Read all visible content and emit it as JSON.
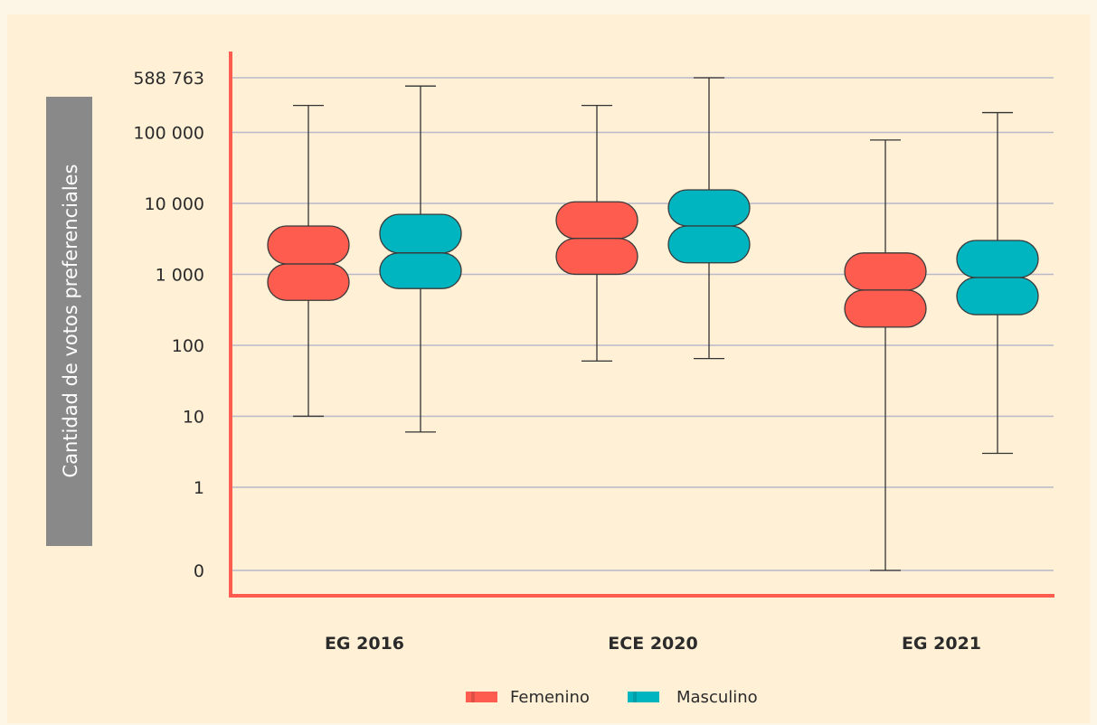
{
  "chart_data": {
    "type": "box",
    "ylabel": "Cantidad de votos preferenciales",
    "y_scale": "log",
    "y_ticks": [
      "0",
      "1",
      "10",
      "100",
      "1 000",
      "10 000",
      "100 000",
      "588 763"
    ],
    "y_tick_values": [
      0,
      1,
      10,
      100,
      1000,
      10000,
      100000,
      588763
    ],
    "categories": [
      "EG 2016",
      "ECE 2020",
      "EG 2021"
    ],
    "series": [
      {
        "name": "Femenino",
        "color": "#fd5c4f",
        "boxes": [
          {
            "min": 10,
            "q1": 430,
            "median": 1400,
            "q3": 4800,
            "max": 240000
          },
          {
            "min": 60,
            "q1": 1000,
            "median": 3200,
            "q3": 10500,
            "max": 240000
          },
          {
            "min": 0,
            "q1": 180,
            "median": 600,
            "q3": 2000,
            "max": 78000
          }
        ]
      },
      {
        "name": "Masculino",
        "color": "#00b4c0",
        "boxes": [
          {
            "min": 6,
            "q1": 630,
            "median": 2000,
            "q3": 7000,
            "max": 450000
          },
          {
            "min": 65,
            "q1": 1450,
            "median": 4800,
            "q3": 15500,
            "max": 588763
          },
          {
            "min": 3,
            "q1": 270,
            "median": 900,
            "q3": 3000,
            "max": 190000
          }
        ]
      }
    ],
    "legend_position": "bottom",
    "grid": true,
    "accent_color": "#fd5c4f",
    "gridline_color": "#b9b9c9"
  }
}
